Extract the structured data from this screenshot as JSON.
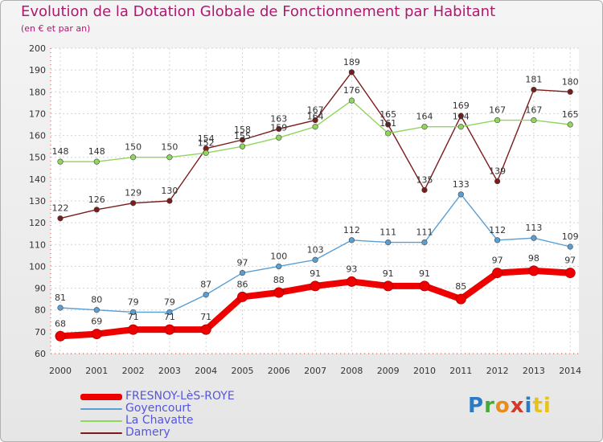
{
  "chart_data": {
    "type": "line",
    "title": "Evolution de la Dotation Globale de Fonctionnement par Habitant",
    "subtitle": "(en € et par an)",
    "x": [
      "2000",
      "2001",
      "2002",
      "2003",
      "2004",
      "2005",
      "2006",
      "2007",
      "2008",
      "2009",
      "2010",
      "2011",
      "2012",
      "2013",
      "2014"
    ],
    "ylim": [
      60,
      200
    ],
    "yticks": [
      60,
      70,
      80,
      90,
      100,
      110,
      120,
      130,
      140,
      150,
      160,
      170,
      180,
      190,
      200
    ],
    "grid": true,
    "series": [
      {
        "name": "FRESNOY-LèS-ROYE",
        "color": "#ee0000",
        "values": [
          68,
          69,
          71,
          71,
          71,
          86,
          88,
          91,
          93,
          91,
          91,
          85,
          97,
          98,
          97
        ]
      },
      {
        "name": "Goyencourt",
        "color": "#5a9fd4",
        "values": [
          81,
          80,
          79,
          79,
          87,
          97,
          100,
          103,
          112,
          111,
          111,
          133,
          112,
          113,
          109
        ]
      },
      {
        "name": "La Chavatte",
        "color": "#8fd65a",
        "values": [
          148,
          148,
          150,
          150,
          152,
          155,
          159,
          164,
          176,
          161,
          164,
          164,
          167,
          167,
          165
        ]
      },
      {
        "name": "Damery",
        "color": "#7a1c1c",
        "values": [
          122,
          126,
          129,
          130,
          154,
          158,
          163,
          167,
          189,
          165,
          135,
          169,
          139,
          181,
          180
        ]
      }
    ]
  },
  "legend": {
    "items": [
      {
        "label": "FRESNOY-LèS-ROYE",
        "color": "#ee0000"
      },
      {
        "label": "Goyencourt",
        "color": "#5a9fd4"
      },
      {
        "label": "La Chavatte",
        "color": "#8fd65a"
      },
      {
        "label": "Damery",
        "color": "#7a1c1c"
      }
    ]
  },
  "logo": {
    "letters": [
      "P",
      "r",
      "o",
      "x",
      "i",
      "ti"
    ]
  }
}
